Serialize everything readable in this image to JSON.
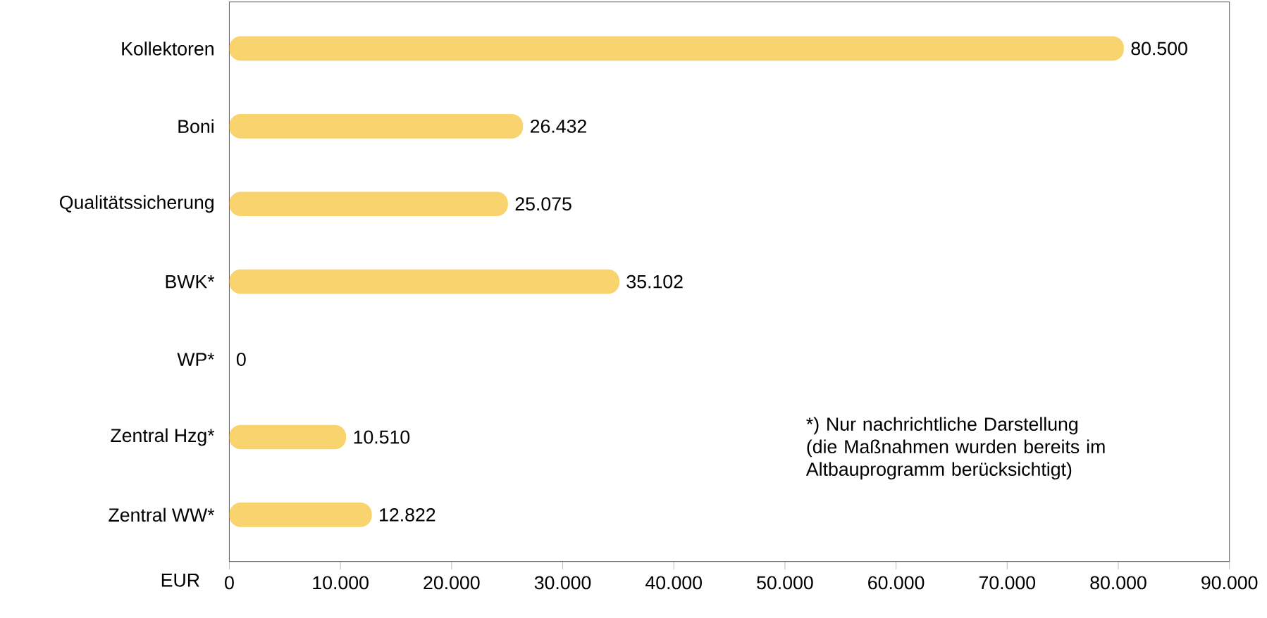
{
  "chart_data": {
    "type": "bar",
    "orientation": "horizontal",
    "categories": [
      "Kollektoren",
      "Boni",
      "Qualitätssicherung",
      "BWK*",
      "WP*",
      "Zentral Hzg*",
      "Zentral WW*"
    ],
    "values": [
      80500,
      26432,
      25075,
      35102,
      0,
      10510,
      12822
    ],
    "value_labels": [
      "80.500",
      "26.432",
      "25.075",
      "35.102",
      "0",
      "10.510",
      "12.822"
    ],
    "color": "#f9d36e",
    "xlabel": "EUR",
    "xlim": [
      0,
      90000
    ],
    "xticks": [
      0,
      {
        "value": 10000,
        "label": "10.000"
      },
      {
        "value": 20000,
        "label": "20.000"
      },
      {
        "value": 30000,
        "label": "30.000"
      },
      {
        "value": 40000,
        "label": "40.000"
      },
      {
        "value": 50000,
        "label": "50.000"
      },
      {
        "value": 60000,
        "label": "60.000"
      },
      {
        "value": 70000,
        "label": "70.000"
      },
      {
        "value": 80000,
        "label": "80.000"
      },
      {
        "value": 90000,
        "label": "90.000"
      }
    ],
    "annotations": [
      "*) Nur nachrichtliche Darstellung (die Maßnahmen wurden bereits im Altbauprogramm berücksichtigt)"
    ],
    "grid": false
  }
}
